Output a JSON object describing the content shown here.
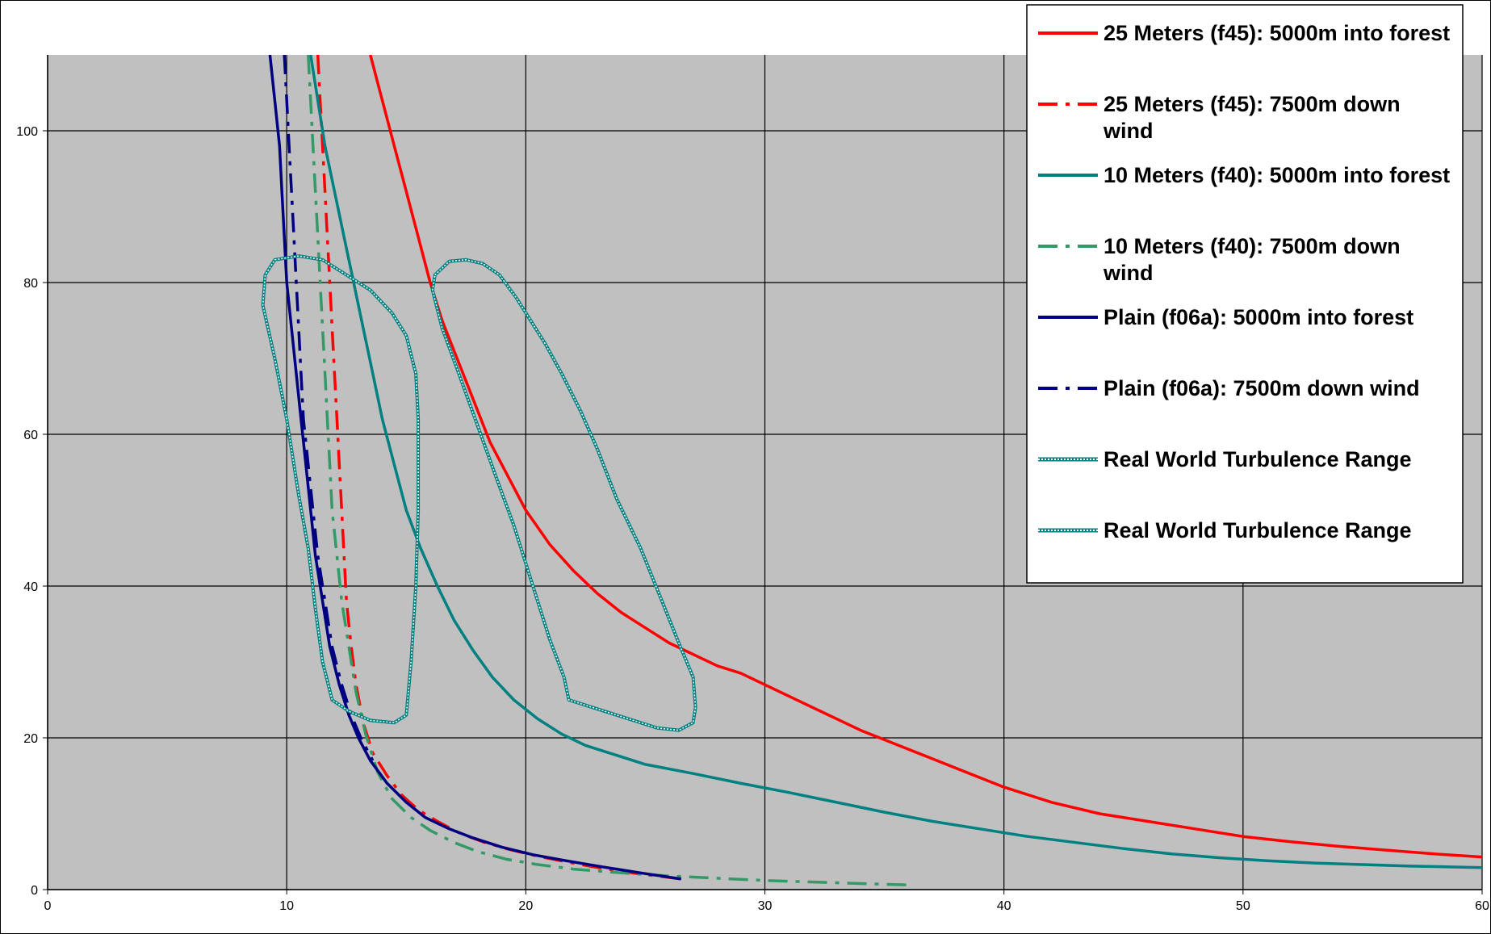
{
  "chart_data": {
    "type": "line",
    "title": "",
    "xlabel": "",
    "ylabel": "",
    "xlim": [
      0,
      60
    ],
    "ylim": [
      0,
      110
    ],
    "x_ticks": [
      0,
      10,
      20,
      30,
      40,
      50,
      60
    ],
    "y_ticks": [
      0,
      20,
      40,
      60,
      80,
      100
    ],
    "grid": true,
    "plot_background": "#c0c0c0",
    "legend_position": "top-right",
    "series": [
      {
        "name": "25 Meters (f45): 5000m into forest",
        "color": "#ff0000",
        "style": "solid",
        "points": [
          [
            13.5,
            110
          ],
          [
            14.0,
            104
          ],
          [
            14.5,
            98
          ],
          [
            15.0,
            92
          ],
          [
            15.5,
            86
          ],
          [
            16.0,
            80
          ],
          [
            16.5,
            75
          ],
          [
            17.0,
            71
          ],
          [
            17.5,
            67
          ],
          [
            18.0,
            63
          ],
          [
            18.5,
            59
          ],
          [
            19.0,
            56
          ],
          [
            19.5,
            53
          ],
          [
            20.0,
            50
          ],
          [
            21.0,
            45.5
          ],
          [
            22.0,
            42
          ],
          [
            23.0,
            39
          ],
          [
            24.0,
            36.5
          ],
          [
            25.0,
            34.5
          ],
          [
            26.0,
            32.5
          ],
          [
            27.0,
            31
          ],
          [
            28.0,
            29.5
          ],
          [
            29.0,
            28.5
          ],
          [
            30.0,
            27
          ],
          [
            32.0,
            24
          ],
          [
            34.0,
            21
          ],
          [
            36.0,
            18.5
          ],
          [
            38.0,
            16
          ],
          [
            40.0,
            13.5
          ],
          [
            42.0,
            11.5
          ],
          [
            44.0,
            10
          ],
          [
            46.0,
            9
          ],
          [
            48.0,
            8
          ],
          [
            50.0,
            7
          ],
          [
            52.0,
            6.3
          ],
          [
            54.0,
            5.7
          ],
          [
            56.0,
            5.2
          ],
          [
            58.0,
            4.7
          ],
          [
            60.0,
            4.3
          ]
        ]
      },
      {
        "name": "25 Meters (f45): 7500m down wind",
        "color": "#ff0000",
        "style": "dashdot",
        "points": [
          [
            11.3,
            110
          ],
          [
            11.4,
            104
          ],
          [
            11.5,
            98
          ],
          [
            11.6,
            92
          ],
          [
            11.7,
            86
          ],
          [
            11.8,
            80
          ],
          [
            11.9,
            74
          ],
          [
            12.0,
            68
          ],
          [
            12.1,
            62
          ],
          [
            12.2,
            56
          ],
          [
            12.3,
            50
          ],
          [
            12.4,
            44
          ],
          [
            12.5,
            38
          ],
          [
            12.7,
            32
          ],
          [
            12.9,
            27
          ],
          [
            13.2,
            22
          ],
          [
            13.6,
            18
          ],
          [
            14.2,
            15
          ],
          [
            14.8,
            12.5
          ],
          [
            15.5,
            10.5
          ],
          [
            16.3,
            9
          ],
          [
            17.2,
            7.5
          ],
          [
            18.2,
            6.3
          ],
          [
            19.3,
            5.3
          ],
          [
            20.5,
            4.4
          ],
          [
            21.8,
            3.6
          ],
          [
            23.2,
            2.8
          ],
          [
            24.7,
            2.1
          ],
          [
            26.5,
            1.4
          ]
        ]
      },
      {
        "name": "10 Meters (f40): 5000m into forest",
        "color": "#008080",
        "style": "solid",
        "points": [
          [
            11.0,
            110
          ],
          [
            11.3,
            104
          ],
          [
            11.6,
            98
          ],
          [
            12.0,
            92
          ],
          [
            12.4,
            86
          ],
          [
            12.8,
            80
          ],
          [
            13.2,
            74
          ],
          [
            13.6,
            68
          ],
          [
            14.0,
            62
          ],
          [
            14.5,
            56
          ],
          [
            15.0,
            50
          ],
          [
            15.6,
            45
          ],
          [
            16.3,
            40
          ],
          [
            17.0,
            35.5
          ],
          [
            17.8,
            31.5
          ],
          [
            18.6,
            28
          ],
          [
            19.5,
            25
          ],
          [
            20.5,
            22.5
          ],
          [
            21.5,
            20.5
          ],
          [
            22.5,
            19
          ],
          [
            23.5,
            18
          ],
          [
            25.0,
            16.5
          ],
          [
            27.0,
            15.3
          ],
          [
            29.0,
            14
          ],
          [
            31.0,
            12.8
          ],
          [
            33.0,
            11.5
          ],
          [
            35.0,
            10.2
          ],
          [
            37.0,
            9
          ],
          [
            39.0,
            8
          ],
          [
            41.0,
            7
          ],
          [
            43.0,
            6.2
          ],
          [
            45.0,
            5.4
          ],
          [
            47.0,
            4.7
          ],
          [
            49.0,
            4.2
          ],
          [
            51.0,
            3.8
          ],
          [
            53.0,
            3.5
          ],
          [
            55.0,
            3.3
          ],
          [
            57.0,
            3.1
          ],
          [
            60.0,
            2.9
          ]
        ]
      },
      {
        "name": "10 Meters (f40): 7500m down wind",
        "color": "#339966",
        "style": "dashdot",
        "points": [
          [
            10.9,
            110
          ],
          [
            11.0,
            104
          ],
          [
            11.1,
            98
          ],
          [
            11.2,
            92
          ],
          [
            11.3,
            86
          ],
          [
            11.4,
            80
          ],
          [
            11.5,
            74
          ],
          [
            11.6,
            68
          ],
          [
            11.7,
            62
          ],
          [
            11.8,
            56
          ],
          [
            11.9,
            50
          ],
          [
            12.1,
            44
          ],
          [
            12.3,
            38
          ],
          [
            12.6,
            32
          ],
          [
            12.9,
            26
          ],
          [
            13.3,
            20.5
          ],
          [
            13.8,
            15.5
          ],
          [
            14.4,
            12
          ],
          [
            15.2,
            9.5
          ],
          [
            16.0,
            7.8
          ],
          [
            17.0,
            6.2
          ],
          [
            18.0,
            5
          ],
          [
            19.2,
            4
          ],
          [
            20.5,
            3.3
          ],
          [
            22.0,
            2.7
          ],
          [
            24.0,
            2.2
          ],
          [
            26.0,
            1.8
          ],
          [
            28.0,
            1.5
          ],
          [
            30.0,
            1.2
          ],
          [
            32.0,
            1
          ],
          [
            34.0,
            0.8
          ],
          [
            36.2,
            0.6
          ]
        ]
      },
      {
        "name": "Plain (f06a): 5000m into forest",
        "color": "#000080",
        "style": "solid",
        "points": [
          [
            9.3,
            110
          ],
          [
            9.5,
            104
          ],
          [
            9.7,
            98
          ],
          [
            9.8,
            92
          ],
          [
            9.9,
            86
          ],
          [
            10.0,
            80
          ],
          [
            10.2,
            74
          ],
          [
            10.4,
            68
          ],
          [
            10.6,
            62
          ],
          [
            10.8,
            56
          ],
          [
            11.0,
            50
          ],
          [
            11.2,
            44
          ],
          [
            11.5,
            38
          ],
          [
            11.8,
            32
          ],
          [
            12.2,
            27
          ],
          [
            12.6,
            23
          ],
          [
            13.0,
            20
          ],
          [
            13.5,
            17
          ],
          [
            14.2,
            14
          ],
          [
            15.0,
            11.5
          ],
          [
            15.8,
            9.5
          ],
          [
            16.8,
            8
          ],
          [
            17.8,
            6.8
          ],
          [
            19.0,
            5.6
          ],
          [
            20.3,
            4.6
          ],
          [
            21.7,
            3.8
          ],
          [
            23.2,
            3
          ],
          [
            24.8,
            2.2
          ],
          [
            26.5,
            1.4
          ]
        ]
      },
      {
        "name": "Plain (f06a): 7500m down wind",
        "color": "#000080",
        "style": "dashdot",
        "points": [
          [
            9.9,
            110
          ],
          [
            10.0,
            104
          ],
          [
            10.1,
            98
          ],
          [
            10.2,
            92
          ],
          [
            10.3,
            86
          ],
          [
            10.4,
            80
          ],
          [
            10.5,
            74
          ],
          [
            10.6,
            68
          ],
          [
            10.7,
            62
          ],
          [
            10.9,
            56
          ],
          [
            11.1,
            50
          ],
          [
            11.3,
            44
          ],
          [
            11.6,
            38
          ],
          [
            11.9,
            32
          ],
          [
            12.3,
            27
          ],
          [
            12.7,
            23
          ],
          [
            13.1,
            20
          ],
          [
            13.6,
            17
          ]
        ]
      },
      {
        "name": "Real World Turbulence Range",
        "color": "#008080",
        "style": "dotted-double",
        "closed": true,
        "points": [
          [
            9.5,
            83
          ],
          [
            10.5,
            83.5
          ],
          [
            11.5,
            83
          ],
          [
            12.5,
            81
          ],
          [
            13.5,
            79
          ],
          [
            14.4,
            76
          ],
          [
            15.0,
            73
          ],
          [
            15.4,
            68
          ],
          [
            15.5,
            62
          ],
          [
            15.5,
            50
          ],
          [
            15.4,
            40
          ],
          [
            15.2,
            30
          ],
          [
            15.0,
            23
          ],
          [
            14.5,
            22
          ],
          [
            13.5,
            22.3
          ],
          [
            12.6,
            23.5
          ],
          [
            11.9,
            25
          ],
          [
            11.5,
            30
          ],
          [
            11.2,
            37
          ],
          [
            10.9,
            45
          ],
          [
            10.5,
            52
          ],
          [
            10.0,
            62
          ],
          [
            9.5,
            70
          ],
          [
            9.0,
            77
          ],
          [
            9.1,
            81
          ]
        ]
      },
      {
        "name": "Real World Turbulence Range",
        "color": "#008080",
        "style": "dotted-double",
        "closed": true,
        "points": [
          [
            16.2,
            81
          ],
          [
            16.8,
            82.8
          ],
          [
            17.5,
            83
          ],
          [
            18.2,
            82.5
          ],
          [
            18.9,
            81
          ],
          [
            19.6,
            78
          ],
          [
            20.2,
            75
          ],
          [
            20.8,
            72
          ],
          [
            21.5,
            68
          ],
          [
            22.3,
            63
          ],
          [
            23.0,
            58
          ],
          [
            23.8,
            51.5
          ],
          [
            24.8,
            45
          ],
          [
            25.7,
            38
          ],
          [
            26.4,
            32.5
          ],
          [
            27.0,
            28
          ],
          [
            27.1,
            24
          ],
          [
            27.0,
            22
          ],
          [
            26.4,
            21
          ],
          [
            25.5,
            21.3
          ],
          [
            24.3,
            22.5
          ],
          [
            23.0,
            23.8
          ],
          [
            21.8,
            25
          ],
          [
            21.6,
            28
          ],
          [
            21.0,
            33
          ],
          [
            20.5,
            38
          ],
          [
            20.0,
            43
          ],
          [
            19.5,
            48
          ],
          [
            18.8,
            54
          ],
          [
            18.0,
            61
          ],
          [
            17.2,
            68
          ],
          [
            16.5,
            74
          ],
          [
            16.1,
            79
          ]
        ]
      }
    ]
  }
}
